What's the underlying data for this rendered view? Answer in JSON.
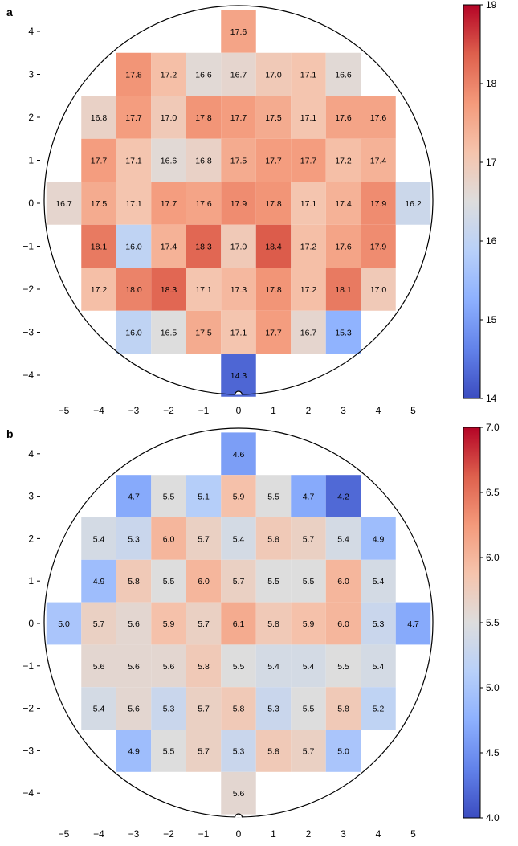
{
  "chart_data": [
    {
      "type": "heatmap",
      "panel_label": "a",
      "x_ticks": [
        -5,
        -4,
        -3,
        -2,
        -1,
        0,
        1,
        2,
        3,
        4,
        5
      ],
      "y_ticks": [
        -4,
        -3,
        -2,
        -1,
        0,
        1,
        2,
        3,
        4
      ],
      "xlim": [
        -5.5,
        5.5
      ],
      "ylim": [
        -4.6,
        4.7
      ],
      "colorbar": {
        "min": 14,
        "max": 19,
        "ticks": [
          14,
          15,
          16,
          17,
          18,
          19
        ],
        "labels": [
          "14",
          "15",
          "16",
          "17",
          "18",
          "19"
        ],
        "colormap": "coolwarm"
      },
      "rows": [
        {
          "y": 4,
          "x_start": 0,
          "values": [
            "17.6"
          ]
        },
        {
          "y": 3,
          "x_start": -3,
          "values": [
            "17.8",
            "17.2",
            "16.6",
            "16.7",
            "17.0",
            "17.1",
            "16.6"
          ]
        },
        {
          "y": 2,
          "x_start": -4,
          "values": [
            "16.8",
            "17.7",
            "17.0",
            "17.8",
            "17.7",
            "17.5",
            "17.1",
            "17.6",
            "17.6"
          ]
        },
        {
          "y": 1,
          "x_start": -4,
          "values": [
            "17.7",
            "17.1",
            "16.6",
            "16.8",
            "17.5",
            "17.7",
            "17.7",
            "17.2",
            "17.4"
          ]
        },
        {
          "y": 0,
          "x_start": -5,
          "values": [
            "16.7",
            "17.5",
            "17.1",
            "17.7",
            "17.6",
            "17.9",
            "17.8",
            "17.1",
            "17.4",
            "17.9",
            "16.2"
          ]
        },
        {
          "y": -1,
          "x_start": -4,
          "values": [
            "18.1",
            "16.0",
            "17.4",
            "18.3",
            "17.0",
            "18.4",
            "17.2",
            "17.6",
            "17.9"
          ]
        },
        {
          "y": -2,
          "x_start": -4,
          "values": [
            "17.2",
            "18.0",
            "18.3",
            "17.1",
            "17.3",
            "17.8",
            "17.2",
            "18.1",
            "17.0"
          ]
        },
        {
          "y": -3,
          "x_start": -3,
          "values": [
            "16.0",
            "16.5",
            "17.5",
            "17.1",
            "17.7",
            "16.7",
            "15.3"
          ]
        },
        {
          "y": -4,
          "x_start": 0,
          "values": [
            "14.3"
          ]
        }
      ]
    },
    {
      "type": "heatmap",
      "panel_label": "b",
      "x_ticks": [
        -5,
        -4,
        -3,
        -2,
        -1,
        0,
        1,
        2,
        3,
        4,
        5
      ],
      "y_ticks": [
        -4,
        -3,
        -2,
        -1,
        0,
        1,
        2,
        3,
        4
      ],
      "xlim": [
        -5.5,
        5.5
      ],
      "ylim": [
        -4.6,
        4.7
      ],
      "colorbar": {
        "min": 4.0,
        "max": 7.0,
        "ticks": [
          4.0,
          4.5,
          5.0,
          5.5,
          6.0,
          6.5,
          7.0
        ],
        "labels": [
          "4.0",
          "4.5",
          "5.0",
          "5.5",
          "6.0",
          "6.5",
          "7.0"
        ],
        "colormap": "coolwarm"
      },
      "rows": [
        {
          "y": 4,
          "x_start": 0,
          "values": [
            "4.6"
          ]
        },
        {
          "y": 3,
          "x_start": -3,
          "values": [
            "4.7",
            "5.5",
            "5.1",
            "5.9",
            "5.5",
            "4.7",
            "4.2"
          ]
        },
        {
          "y": 2,
          "x_start": -4,
          "values": [
            "5.4",
            "5.3",
            "6.0",
            "5.7",
            "5.4",
            "5.8",
            "5.7",
            "5.4",
            "4.9"
          ]
        },
        {
          "y": 1,
          "x_start": -4,
          "values": [
            "4.9",
            "5.8",
            "5.5",
            "6.0",
            "5.7",
            "5.5",
            "5.5",
            "6.0",
            "5.4"
          ]
        },
        {
          "y": 0,
          "x_start": -5,
          "values": [
            "5.0",
            "5.7",
            "5.6",
            "5.9",
            "5.7",
            "6.1",
            "5.8",
            "5.9",
            "6.0",
            "5.3",
            "4.7"
          ]
        },
        {
          "y": -1,
          "x_start": -4,
          "values": [
            "5.6",
            "5.6",
            "5.6",
            "5.8",
            "5.5",
            "5.4",
            "5.4",
            "5.5",
            "5.4"
          ]
        },
        {
          "y": -2,
          "x_start": -4,
          "values": [
            "5.4",
            "5.6",
            "5.3",
            "5.7",
            "5.8",
            "5.3",
            "5.5",
            "5.8",
            "5.2"
          ]
        },
        {
          "y": -3,
          "x_start": -3,
          "values": [
            "4.9",
            "5.5",
            "5.7",
            "5.3",
            "5.8",
            "5.7",
            "5.0"
          ]
        },
        {
          "y": -4,
          "x_start": 0,
          "values": [
            "5.6"
          ]
        }
      ]
    }
  ]
}
